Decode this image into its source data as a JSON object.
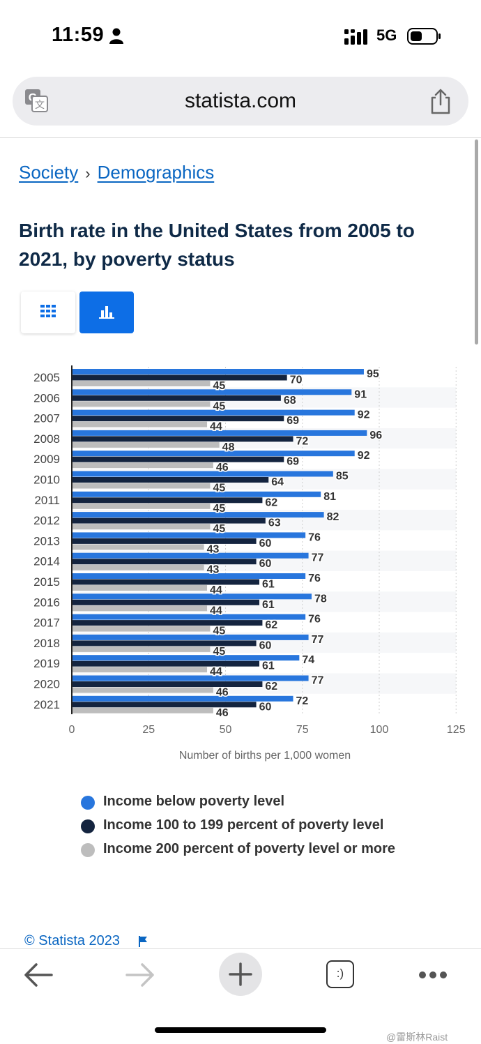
{
  "status_bar": {
    "time": "11:59",
    "network": "5G"
  },
  "browser": {
    "url": "statista.com"
  },
  "breadcrumb": {
    "items": [
      "Society",
      "Demographics"
    ],
    "separator": "›"
  },
  "page": {
    "title": "Birth rate in the United States from 2005 to 2021, by poverty status"
  },
  "chart_data": {
    "type": "bar",
    "orientation": "horizontal",
    "title": "Birth rate in the United States from 2005 to 2021, by poverty status",
    "categories": [
      "2005",
      "2006",
      "2007",
      "2008",
      "2009",
      "2010",
      "2011",
      "2012",
      "2013",
      "2014",
      "2015",
      "2016",
      "2017",
      "2018",
      "2019",
      "2020",
      "2021"
    ],
    "series": [
      {
        "name": "Income below poverty level",
        "color": "#2876dd",
        "values": [
          95,
          91,
          92,
          96,
          92,
          85,
          81,
          82,
          76,
          77,
          76,
          78,
          76,
          77,
          74,
          77,
          72
        ]
      },
      {
        "name": "Income 100 to 199 percent of poverty level",
        "color": "#14243f",
        "values": [
          70,
          68,
          69,
          72,
          69,
          64,
          62,
          63,
          60,
          60,
          61,
          61,
          62,
          60,
          61,
          62,
          60
        ]
      },
      {
        "name": "Income 200 percent of poverty level or more",
        "color": "#bdbdbd",
        "values": [
          45,
          45,
          44,
          48,
          46,
          45,
          45,
          45,
          43,
          43,
          44,
          44,
          45,
          45,
          44,
          46,
          46
        ]
      }
    ],
    "x_ticks": [
      0,
      25,
      50,
      75,
      100,
      125
    ],
    "xlim": [
      0,
      125
    ],
    "xlabel": "Number of births per 1,000 women",
    "grid": true,
    "legend_position": "bottom"
  },
  "footer": {
    "copyright": "© Statista 2023"
  },
  "toolbar": {
    "tabs_label": ":)"
  },
  "watermark": "@雷斯林Raist"
}
